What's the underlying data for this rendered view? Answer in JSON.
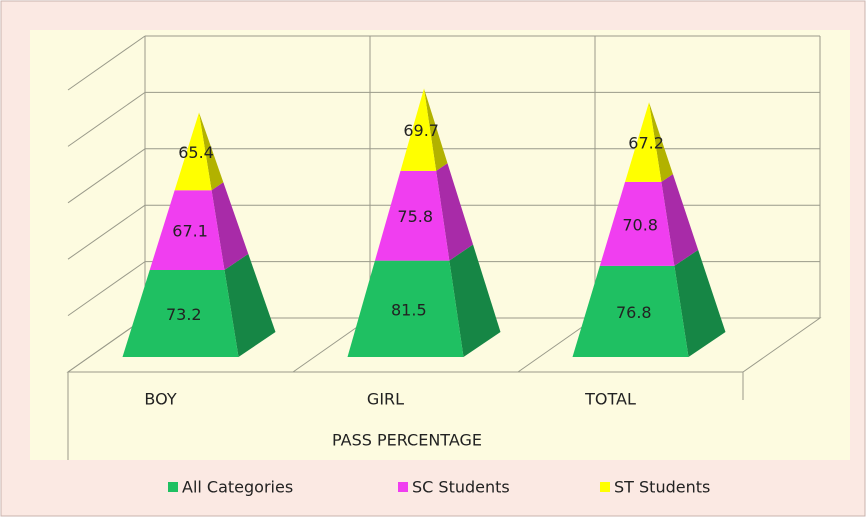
{
  "chart_data": {
    "type": "pyramid",
    "categories": [
      "BOY",
      "GIRL",
      "TOTAL"
    ],
    "x_label": "PASS PERCENTAGE",
    "series": [
      {
        "name": "All Categories",
        "color": "#1fc062",
        "values": [
          73.2,
          81.5,
          76.8
        ]
      },
      {
        "name": "SC Students",
        "color": "#f03ef0",
        "values": [
          67.1,
          75.8,
          70.8
        ]
      },
      {
        "name": "ST Students",
        "color": "#ffff00",
        "values": [
          65.4,
          69.7,
          67.2
        ]
      }
    ],
    "ylim": [
      0,
      250
    ],
    "yticks": [
      0,
      50,
      100,
      150,
      200,
      250
    ],
    "grid": true,
    "legend": "bottom"
  }
}
